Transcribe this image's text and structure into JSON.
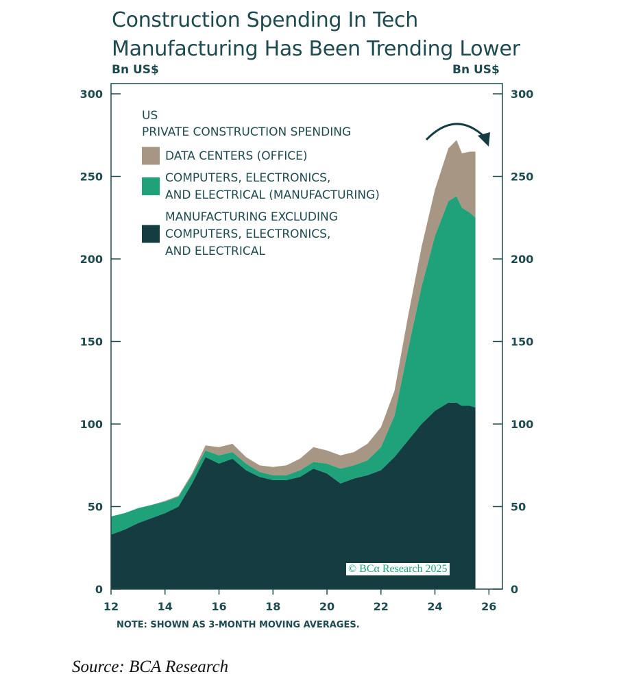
{
  "title_line1": "Construction Spending In Tech",
  "title_line2": "Manufacturing Has Been Trending Lower",
  "unit_left": "Bn US$",
  "unit_right": "Bn US$",
  "note": "NOTE: SHOWN AS 3-MONTH MOVING AVERAGES.",
  "source": "Source: BCA Research",
  "copyright": "© BCα Research 2025",
  "colors": {
    "data_centers": "#a89684",
    "computers": "#1fa27a",
    "manufacturing_ex": "#153c40",
    "axis": "#1d4a4f"
  },
  "chart_data": {
    "type": "area",
    "stacked": true,
    "legend_title_line1": "US",
    "legend_title_line2": "PRIVATE CONSTRUCTION SPENDING",
    "x_ticks": [
      "12",
      "14",
      "16",
      "18",
      "20",
      "22",
      "24",
      "26"
    ],
    "y_ticks": [
      0,
      50,
      100,
      150,
      200,
      250,
      300
    ],
    "xlim": [
      2012,
      2026.5
    ],
    "ylim": [
      0,
      300
    ],
    "x": [
      2012.0,
      2012.5,
      2013.0,
      2013.5,
      2014.0,
      2014.5,
      2015.0,
      2015.5,
      2016.0,
      2016.5,
      2017.0,
      2017.5,
      2018.0,
      2018.5,
      2019.0,
      2019.5,
      2020.0,
      2020.5,
      2021.0,
      2021.5,
      2022.0,
      2022.5,
      2023.0,
      2023.5,
      2024.0,
      2024.5,
      2024.8,
      2025.0,
      2025.3,
      2025.5
    ],
    "series": [
      {
        "name": "MANUFACTURING EXCLUDING COMPUTERS, ELECTRONICS, AND ELECTRICAL",
        "legend_lines": [
          "MANUFACTURING EXCLUDING",
          "COMPUTERS, ELECTRONICS,",
          "AND ELECTRICAL"
        ],
        "color_key": "manufacturing_ex",
        "values": [
          33,
          36,
          40,
          43,
          46,
          50,
          64,
          80,
          76,
          79,
          72,
          68,
          66,
          66,
          68,
          73,
          70,
          64,
          67,
          69,
          72,
          80,
          90,
          100,
          108,
          113,
          113,
          111,
          111,
          110
        ]
      },
      {
        "name": "COMPUTERS, ELECTRONICS, AND ELECTRICAL (MANUFACTURING)",
        "legend_lines": [
          "COMPUTERS, ELECTRONICS,",
          "AND ELECTRICAL (MANUFACTURING)"
        ],
        "color_key": "computers",
        "values": [
          11,
          10,
          9,
          8,
          7,
          6,
          5,
          4,
          5,
          4,
          4,
          3,
          3,
          3,
          4,
          4,
          6,
          9,
          8,
          9,
          14,
          25,
          55,
          83,
          106,
          122,
          125,
          120,
          117,
          115
        ]
      },
      {
        "name": "DATA CENTERS (OFFICE)",
        "legend_lines": [
          "DATA CENTERS (OFFICE)"
        ],
        "color_key": "data_centers",
        "values": [
          0,
          0,
          0,
          0,
          0.5,
          0.5,
          1,
          3,
          5,
          5,
          4,
          4,
          5,
          6,
          7,
          9,
          8,
          8,
          8,
          10,
          12,
          15,
          20,
          24,
          28,
          32,
          34,
          33,
          37,
          40
        ]
      }
    ]
  }
}
